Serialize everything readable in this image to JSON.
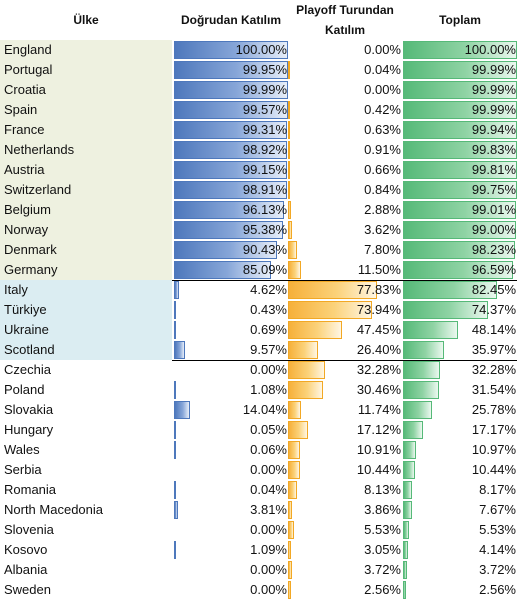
{
  "headers": {
    "country": "Ülke",
    "direct": "Doğrudan Katılım",
    "playoff": "Playoff Turundan Katılım",
    "total": "Toplam"
  },
  "rows": [
    {
      "country": "England",
      "direct": 100.0,
      "direct_label": "100.00%",
      "playoff": 0.0,
      "playoff_label": "0.00%",
      "total": 100.0,
      "total_label": "100.00%",
      "group": "a"
    },
    {
      "country": "Portugal",
      "direct": 99.95,
      "direct_label": "99.95%",
      "playoff": 0.04,
      "playoff_label": "0.04%",
      "total": 99.99,
      "total_label": "99.99%",
      "group": "a"
    },
    {
      "country": "Croatia",
      "direct": 99.99,
      "direct_label": "99.99%",
      "playoff": 0.0,
      "playoff_label": "0.00%",
      "total": 99.99,
      "total_label": "99.99%",
      "group": "a"
    },
    {
      "country": "Spain",
      "direct": 99.57,
      "direct_label": "99.57%",
      "playoff": 0.42,
      "playoff_label": "0.42%",
      "total": 99.99,
      "total_label": "99.99%",
      "group": "a"
    },
    {
      "country": "France",
      "direct": 99.31,
      "direct_label": "99.31%",
      "playoff": 0.63,
      "playoff_label": "0.63%",
      "total": 99.94,
      "total_label": "99.94%",
      "group": "a"
    },
    {
      "country": "Netherlands",
      "direct": 98.92,
      "direct_label": "98.92%",
      "playoff": 0.91,
      "playoff_label": "0.91%",
      "total": 99.83,
      "total_label": "99.83%",
      "group": "a"
    },
    {
      "country": "Austria",
      "direct": 99.15,
      "direct_label": "99.15%",
      "playoff": 0.66,
      "playoff_label": "0.66%",
      "total": 99.81,
      "total_label": "99.81%",
      "group": "a"
    },
    {
      "country": "Switzerland",
      "direct": 98.91,
      "direct_label": "98.91%",
      "playoff": 0.84,
      "playoff_label": "0.84%",
      "total": 99.75,
      "total_label": "99.75%",
      "group": "a"
    },
    {
      "country": "Belgium",
      "direct": 96.13,
      "direct_label": "96.13%",
      "playoff": 2.88,
      "playoff_label": "2.88%",
      "total": 99.01,
      "total_label": "99.01%",
      "group": "a"
    },
    {
      "country": "Norway",
      "direct": 95.38,
      "direct_label": "95.38%",
      "playoff": 3.62,
      "playoff_label": "3.62%",
      "total": 99.0,
      "total_label": "99.00%",
      "group": "a"
    },
    {
      "country": "Denmark",
      "direct": 90.43,
      "direct_label": "90.43%",
      "playoff": 7.8,
      "playoff_label": "7.80%",
      "total": 98.23,
      "total_label": "98.23%",
      "group": "a"
    },
    {
      "country": "Germany",
      "direct": 85.09,
      "direct_label": "85.09%",
      "playoff": 11.5,
      "playoff_label": "11.50%",
      "total": 96.59,
      "total_label": "96.59%",
      "group": "a"
    },
    {
      "country": "Italy",
      "direct": 4.62,
      "direct_label": "4.62%",
      "playoff": 77.83,
      "playoff_label": "77.83%",
      "total": 82.45,
      "total_label": "82.45%",
      "group": "b"
    },
    {
      "country": "Türkiye",
      "direct": 0.43,
      "direct_label": "0.43%",
      "playoff": 73.94,
      "playoff_label": "73.94%",
      "total": 74.37,
      "total_label": "74.37%",
      "group": "b"
    },
    {
      "country": "Ukraine",
      "direct": 0.69,
      "direct_label": "0.69%",
      "playoff": 47.45,
      "playoff_label": "47.45%",
      "total": 48.14,
      "total_label": "48.14%",
      "group": "b"
    },
    {
      "country": "Scotland",
      "direct": 9.57,
      "direct_label": "9.57%",
      "playoff": 26.4,
      "playoff_label": "26.40%",
      "total": 35.97,
      "total_label": "35.97%",
      "group": "b"
    },
    {
      "country": "Czechia",
      "direct": 0.0,
      "direct_label": "0.00%",
      "playoff": 32.28,
      "playoff_label": "32.28%",
      "total": 32.28,
      "total_label": "32.28%",
      "group": "c"
    },
    {
      "country": "Poland",
      "direct": 1.08,
      "direct_label": "1.08%",
      "playoff": 30.46,
      "playoff_label": "30.46%",
      "total": 31.54,
      "total_label": "31.54%",
      "group": "c"
    },
    {
      "country": "Slovakia",
      "direct": 14.04,
      "direct_label": "14.04%",
      "playoff": 11.74,
      "playoff_label": "11.74%",
      "total": 25.78,
      "total_label": "25.78%",
      "group": "c"
    },
    {
      "country": "Hungary",
      "direct": 0.05,
      "direct_label": "0.05%",
      "playoff": 17.12,
      "playoff_label": "17.12%",
      "total": 17.17,
      "total_label": "17.17%",
      "group": "c"
    },
    {
      "country": "Wales",
      "direct": 0.06,
      "direct_label": "0.06%",
      "playoff": 10.91,
      "playoff_label": "10.91%",
      "total": 10.97,
      "total_label": "10.97%",
      "group": "c"
    },
    {
      "country": "Serbia",
      "direct": 0.0,
      "direct_label": "0.00%",
      "playoff": 10.44,
      "playoff_label": "10.44%",
      "total": 10.44,
      "total_label": "10.44%",
      "group": "c"
    },
    {
      "country": "Romania",
      "direct": 0.04,
      "direct_label": "0.04%",
      "playoff": 8.13,
      "playoff_label": "8.13%",
      "total": 8.17,
      "total_label": "8.17%",
      "group": "c"
    },
    {
      "country": "North Macedonia",
      "direct": 3.81,
      "direct_label": "3.81%",
      "playoff": 3.86,
      "playoff_label": "3.86%",
      "total": 7.67,
      "total_label": "7.67%",
      "group": "c"
    },
    {
      "country": "Slovenia",
      "direct": 0.0,
      "direct_label": "0.00%",
      "playoff": 5.53,
      "playoff_label": "5.53%",
      "total": 5.53,
      "total_label": "5.53%",
      "group": "c"
    },
    {
      "country": "Kosovo",
      "direct": 1.09,
      "direct_label": "1.09%",
      "playoff": 3.05,
      "playoff_label": "3.05%",
      "total": 4.14,
      "total_label": "4.14%",
      "group": "c"
    },
    {
      "country": "Albania",
      "direct": 0.0,
      "direct_label": "0.00%",
      "playoff": 3.72,
      "playoff_label": "3.72%",
      "total": 3.72,
      "total_label": "3.72%",
      "group": "c"
    },
    {
      "country": "Sweden",
      "direct": 0.0,
      "direct_label": "0.00%",
      "playoff": 2.56,
      "playoff_label": "2.56%",
      "total": 2.56,
      "total_label": "2.56%",
      "group": "c"
    }
  ],
  "colors": {
    "direct_bar": "#4e78bc",
    "playoff_bar": "#f6b03a",
    "total_bar": "#56b978",
    "group_a_bg": "#eef1e0",
    "group_b_bg": "#dbedf2",
    "separator": "#000000"
  }
}
